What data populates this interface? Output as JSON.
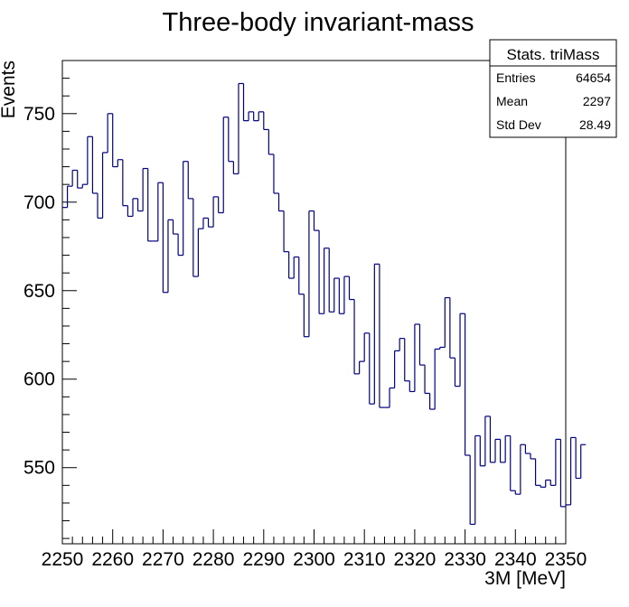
{
  "chart_data": {
    "type": "histogram-step",
    "title": "Three-body invariant-mass",
    "xlabel": "3M [MeV]",
    "ylabel": "Events",
    "xlim": [
      2250,
      2350
    ],
    "ylim": [
      507,
      780
    ],
    "x_ticks": [
      2250,
      2260,
      2270,
      2280,
      2290,
      2300,
      2310,
      2320,
      2330,
      2340,
      2350
    ],
    "y_ticks": [
      550,
      600,
      650,
      700,
      750
    ],
    "line_color": "#000080",
    "bin_width": 1,
    "series": [
      {
        "name": "triMass",
        "values": [
          697,
          709,
          718,
          708,
          710,
          737,
          705,
          691,
          728,
          750,
          720,
          724,
          698,
          692,
          702,
          695,
          719,
          678,
          678,
          711,
          649,
          690,
          682,
          670,
          723,
          702,
          658,
          685,
          691,
          686,
          703,
          694,
          748,
          723,
          716,
          767,
          746,
          751,
          746,
          751,
          741,
          727,
          705,
          695,
          672,
          657,
          669,
          648,
          624,
          695,
          684,
          637,
          674,
          638,
          657,
          637,
          658,
          645,
          603,
          610,
          626,
          586,
          665,
          584,
          584,
          595,
          616,
          623,
          599,
          593,
          631,
          608,
          592,
          583,
          617,
          618,
          646,
          612,
          596,
          637,
          557,
          518,
          568,
          551,
          579,
          553,
          566,
          553,
          568,
          537,
          535,
          563,
          558,
          555,
          540,
          539,
          543,
          540,
          566,
          528,
          529,
          567,
          544,
          563
        ]
      }
    ],
    "stats": {
      "title": "Stats. triMass",
      "rows": [
        {
          "label": "Entries",
          "value": "64654"
        },
        {
          "label": "Mean",
          "value": "2297"
        },
        {
          "label": "Std Dev",
          "value": "28.49"
        }
      ]
    }
  }
}
